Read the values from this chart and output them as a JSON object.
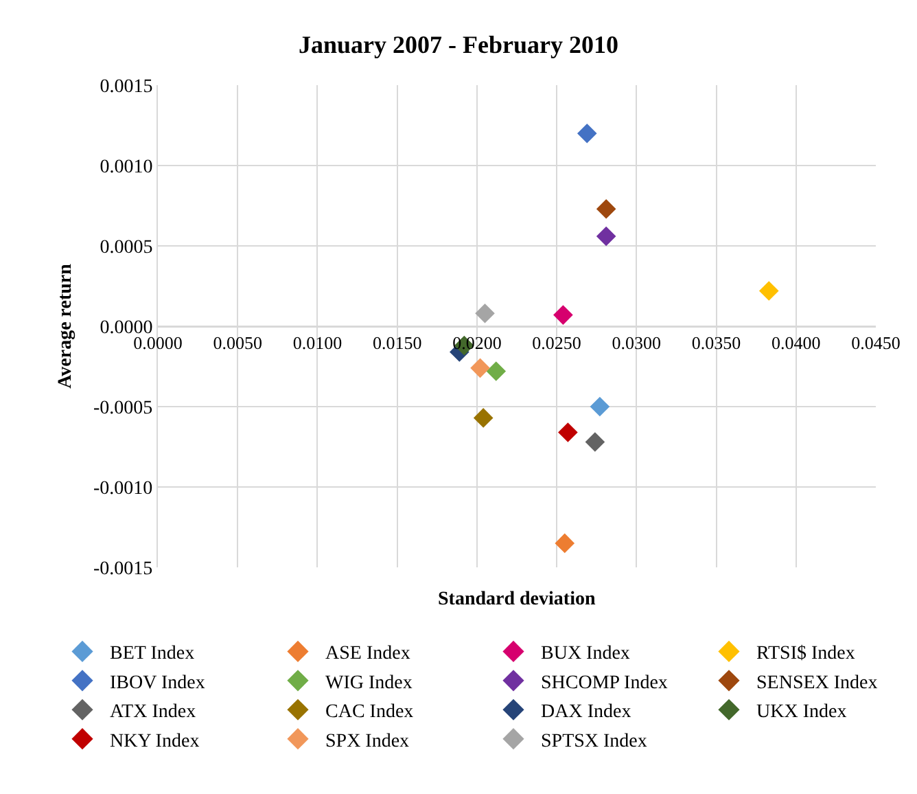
{
  "chart_data": {
    "type": "scatter",
    "title": "January 2007 - February 2010",
    "xlabel": "Standard deviation",
    "ylabel": "Average return",
    "xlim": [
      0,
      0.045
    ],
    "xticks": [
      {
        "value": 0,
        "label": "0.0000"
      },
      {
        "value": 0.005,
        "label": "0.0050"
      },
      {
        "value": 0.01,
        "label": "0.0100"
      },
      {
        "value": 0.015,
        "label": "0.0150"
      },
      {
        "value": 0.02,
        "label": "0.0200"
      },
      {
        "value": 0.025,
        "label": "0.0250"
      },
      {
        "value": 0.03,
        "label": "0.0300"
      },
      {
        "value": 0.035,
        "label": "0.0350"
      },
      {
        "value": 0.04,
        "label": "0.0400"
      },
      {
        "value": 0.045,
        "label": "0.0450"
      }
    ],
    "ylim": [
      -0.0015,
      0.0015
    ],
    "yticks": [
      {
        "value": -0.0015,
        "label": "-0.0015"
      },
      {
        "value": -0.001,
        "label": "-0.0010"
      },
      {
        "value": -0.0005,
        "label": "-0.0005"
      },
      {
        "value": 0,
        "label": "0.0000"
      },
      {
        "value": 0.0005,
        "label": "0.0005"
      },
      {
        "value": 0.001,
        "label": "0.0010"
      },
      {
        "value": 0.0015,
        "label": "0.0015"
      }
    ],
    "grid": true,
    "legend": "bottom",
    "marker": "diamond",
    "series": [
      {
        "name": "BET Index",
        "color": "#5b9bd5",
        "x": [
          0.0277
        ],
        "values": [
          -0.0005
        ]
      },
      {
        "name": "ASE Index",
        "color": "#ed7d31",
        "x": [
          0.0255
        ],
        "values": [
          -0.00135
        ]
      },
      {
        "name": "BUX Index",
        "color": "#d6006e",
        "x": [
          0.0254
        ],
        "values": [
          7e-05
        ]
      },
      {
        "name": "RTSI$ Index",
        "color": "#ffc000",
        "x": [
          0.0383
        ],
        "values": [
          0.00022
        ]
      },
      {
        "name": "IBOV Index",
        "color": "#4472c4",
        "x": [
          0.0269
        ],
        "values": [
          0.0012
        ]
      },
      {
        "name": "WIG Index",
        "color": "#70ad47",
        "x": [
          0.0212
        ],
        "values": [
          -0.00028
        ]
      },
      {
        "name": "SHCOMP Index",
        "color": "#7030a0",
        "x": [
          0.0281
        ],
        "values": [
          0.00056
        ]
      },
      {
        "name": "SENSEX Index",
        "color": "#9e480e",
        "x": [
          0.0281
        ],
        "values": [
          0.00073
        ]
      },
      {
        "name": "ATX Index",
        "color": "#636363",
        "x": [
          0.0274
        ],
        "values": [
          -0.00072
        ]
      },
      {
        "name": "CAC Index",
        "color": "#997300",
        "x": [
          0.0204
        ],
        "values": [
          -0.00057
        ]
      },
      {
        "name": "DAX Index",
        "color": "#264478",
        "x": [
          0.0189
        ],
        "values": [
          -0.00016
        ]
      },
      {
        "name": "UKX Index",
        "color": "#43682b",
        "x": [
          0.0192
        ],
        "values": [
          -0.00012
        ]
      },
      {
        "name": "NKY Index",
        "color": "#c00000",
        "x": [
          0.0257
        ],
        "values": [
          -0.00066
        ]
      },
      {
        "name": "SPX Index",
        "color": "#f1975a",
        "x": [
          0.0202
        ],
        "values": [
          -0.00026
        ]
      },
      {
        "name": "SPTSX Index",
        "color": "#a5a5a5",
        "x": [
          0.0205
        ],
        "values": [
          8e-05
        ]
      }
    ]
  }
}
